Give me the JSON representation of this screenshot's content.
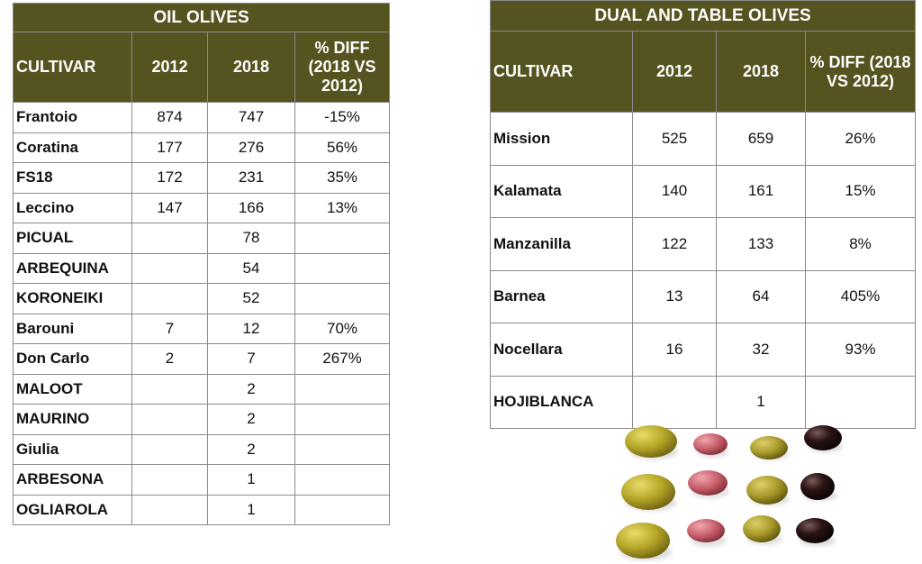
{
  "oil": {
    "title": "OIL OLIVES",
    "headers": [
      "CULTIVAR",
      "2012",
      "2018",
      "% DIFF (2018 VS 2012)"
    ],
    "rows": [
      [
        "Frantoio",
        "874",
        "747",
        "-15%"
      ],
      [
        "Coratina",
        "177",
        "276",
        "56%"
      ],
      [
        "FS18",
        "172",
        "231",
        "35%"
      ],
      [
        "Leccino",
        "147",
        "166",
        "13%"
      ],
      [
        "PICUAL",
        "",
        "78",
        ""
      ],
      [
        "ARBEQUINA",
        "",
        "54",
        ""
      ],
      [
        "KORONEIKI",
        "",
        "52",
        ""
      ],
      [
        "Barouni",
        "7",
        "12",
        "70%"
      ],
      [
        "Don Carlo",
        "2",
        "7",
        "267%"
      ],
      [
        "MALOOT",
        "",
        "2",
        ""
      ],
      [
        "MAURINO",
        "",
        "2",
        ""
      ],
      [
        "Giulia",
        "",
        "2",
        ""
      ],
      [
        "ARBESONA",
        "",
        "1",
        ""
      ],
      [
        "OGLIAROLA",
        "",
        "1",
        ""
      ]
    ]
  },
  "dual": {
    "title": "DUAL AND TABLE OLIVES",
    "headers": [
      "CULTIVAR",
      "2012",
      "2018",
      "% DIFF (2018 VS 2012)"
    ],
    "rows": [
      [
        "Mission",
        "525",
        "659",
        "26%"
      ],
      [
        "Kalamata",
        "140",
        "161",
        "15%"
      ],
      [
        "Manzanilla",
        "122",
        "133",
        "8%"
      ],
      [
        "Barnea",
        "13",
        "64",
        "405%"
      ],
      [
        "Nocellara",
        "16",
        "32",
        "93%"
      ],
      [
        "HOJIBLANCA",
        "",
        "1",
        ""
      ]
    ]
  },
  "image": {
    "olive_colors": [
      "#b4a526",
      "#c8606c",
      "#a99b2a",
      "#2a1414"
    ]
  }
}
